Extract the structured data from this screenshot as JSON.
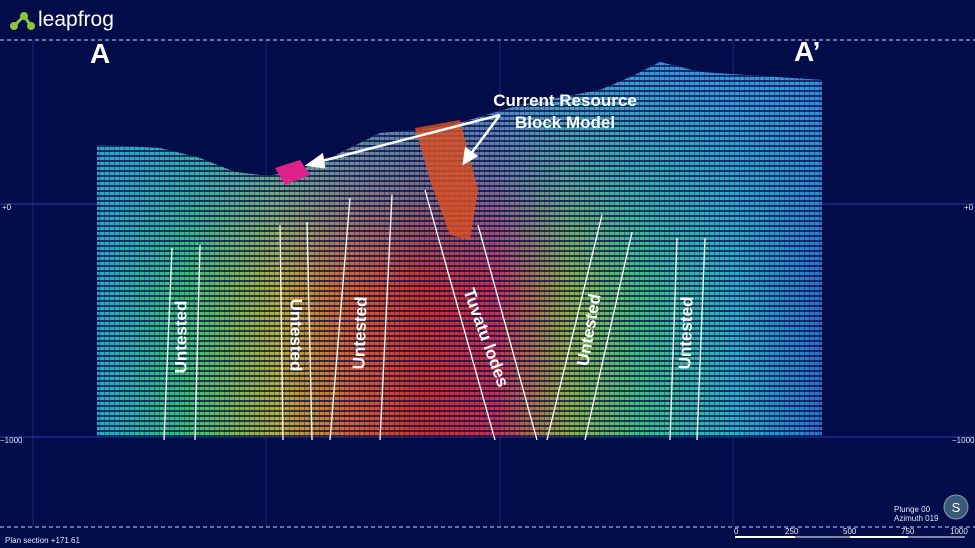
{
  "app": {
    "logo": "leapfrog"
  },
  "section": {
    "start": "A",
    "end": "A’"
  },
  "elevations": [
    "+0",
    "−1000"
  ],
  "callout": [
    "Current Resource",
    "Block Model"
  ],
  "zones": [
    "Untested",
    "Untested",
    "Untested",
    "Tuvatu lodes",
    "Untested",
    "Untested"
  ],
  "view": {
    "plunge": "Plunge 00",
    "azimuth": "Azimuth 019",
    "compass": "S"
  },
  "status": "Plan section +171.61",
  "scale_bar": [
    "0",
    "250",
    "500",
    "750",
    "1000"
  ]
}
